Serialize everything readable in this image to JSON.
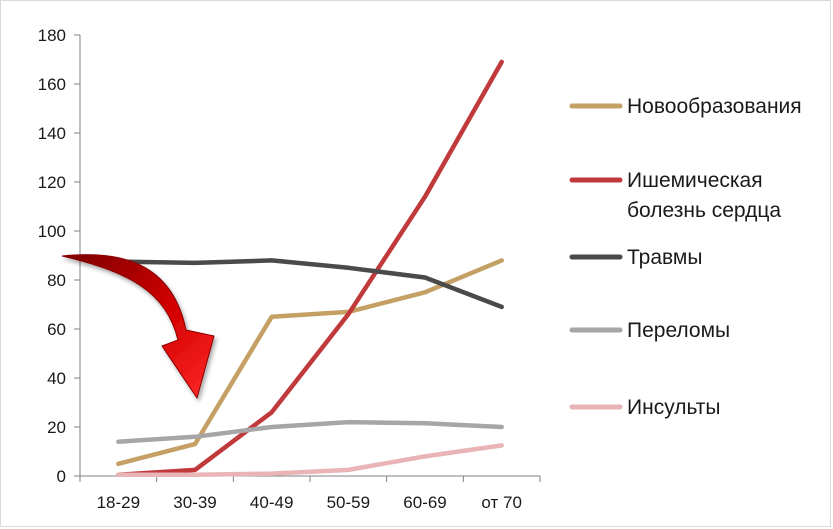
{
  "chart_data": {
    "type": "line",
    "categories": [
      "18-29",
      "30-39",
      "40-49",
      "50-59",
      "60-69",
      "от 70"
    ],
    "ylim": [
      0,
      180
    ],
    "yticks": [
      0,
      20,
      40,
      60,
      80,
      100,
      120,
      140,
      160,
      180
    ],
    "grid": false,
    "legend_position": "right",
    "series": [
      {
        "name": "Новообразования",
        "color": "#c4a064",
        "values": [
          5,
          13,
          65,
          67,
          75,
          88
        ]
      },
      {
        "name": "Ишемическая болезнь сердца",
        "name_lines": [
          "Ишемическая",
          "болезнь сердца"
        ],
        "color": "#c0393b",
        "values": [
          0.5,
          2.5,
          26,
          66,
          114,
          169
        ]
      },
      {
        "name": "Травмы",
        "color": "#4a4a4a",
        "values": [
          87.5,
          87,
          88,
          85,
          81,
          69
        ]
      },
      {
        "name": "Переломы",
        "color": "#a6a6a6",
        "values": [
          14,
          16,
          20,
          22,
          21.5,
          20
        ]
      },
      {
        "name": "Инсульты",
        "color": "#e8b4b6",
        "values": [
          0.5,
          0.5,
          1,
          2.5,
          8,
          12.5
        ]
      }
    ],
    "annotation": {
      "shape": "curved-arrow",
      "color": "#b00000"
    }
  }
}
